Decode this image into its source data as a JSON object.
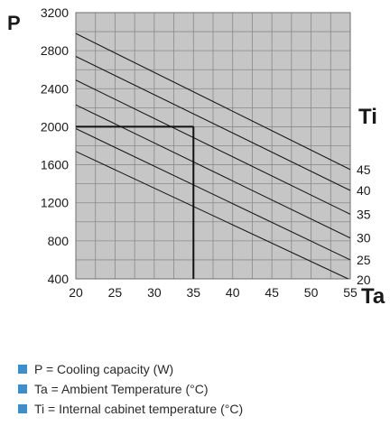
{
  "chart_data": {
    "type": "line",
    "title": "",
    "ylabel": "P",
    "xlabel": "Ta",
    "series_label_title": "Ti",
    "x_ticks": [
      "20",
      "25",
      "30",
      "35",
      "40",
      "45",
      "50",
      "55"
    ],
    "y_ticks": [
      "3200",
      "2800",
      "2400",
      "2000",
      "1600",
      "1200",
      "800",
      "400"
    ],
    "xlim": [
      20,
      55
    ],
    "ylim": [
      400,
      3200
    ],
    "grid": true,
    "series": [
      {
        "name": "45",
        "x": [
          20,
          55
        ],
        "y": [
          2980,
          1550
        ]
      },
      {
        "name": "40",
        "x": [
          20,
          55
        ],
        "y": [
          2740,
          1330
        ]
      },
      {
        "name": "35",
        "x": [
          20,
          55
        ],
        "y": [
          2490,
          1080
        ]
      },
      {
        "name": "30",
        "x": [
          20,
          55
        ],
        "y": [
          2230,
          830
        ]
      },
      {
        "name": "25",
        "x": [
          20,
          55
        ],
        "y": [
          1980,
          600
        ]
      },
      {
        "name": "20",
        "x": [
          20,
          55
        ],
        "y": [
          1740,
          390
        ]
      }
    ],
    "reference": {
      "x": 35,
      "y": 2000
    },
    "colors": {
      "plot_bg": "#c6c6c6",
      "grid": "#8a8a8a",
      "line": "#1a1a1a",
      "legend_square": "#3a8fd1"
    }
  },
  "legend": [
    {
      "text": "P = Cooling capacity (W)"
    },
    {
      "text": "Ta = Ambient Temperature (°C)"
    },
    {
      "text": "Ti = Internal cabinet temperature (°C)"
    }
  ]
}
